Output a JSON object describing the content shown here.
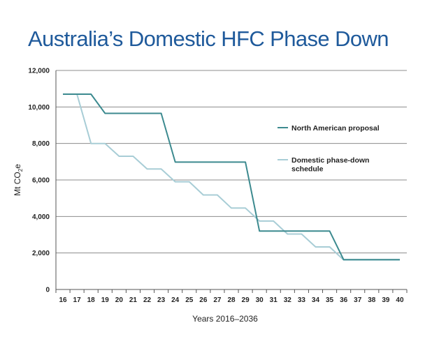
{
  "chart_data": {
    "type": "line",
    "title": "Australia’s Domestic HFC Phase Down",
    "xlabel": "Years 2016–2036",
    "ylabel_main": "Mt CO",
    "ylabel_sub": "2",
    "ylabel_suffix": "e",
    "ylim": [
      0,
      12000
    ],
    "y_ticks": [
      "0",
      "2,000",
      "4,000",
      "6,000",
      "8,000",
      "10,000",
      "12,000"
    ],
    "y_tick_values": [
      0,
      2000,
      4000,
      6000,
      8000,
      10000,
      12000
    ],
    "x": [
      "16",
      "17",
      "18",
      "19",
      "20",
      "21",
      "22",
      "23",
      "24",
      "25",
      "26",
      "27",
      "28",
      "29",
      "30",
      "31",
      "32",
      "33",
      "34",
      "35",
      "36",
      "37",
      "38",
      "39",
      "40"
    ],
    "grid": true,
    "legend_placement": "right",
    "series": [
      {
        "name": "North American proposal",
        "color": "#3c8a8f",
        "values": [
          10700,
          10700,
          10700,
          9650,
          9650,
          9650,
          9650,
          9650,
          6980,
          6980,
          6980,
          6980,
          6980,
          6980,
          3200,
          3200,
          3200,
          3200,
          3200,
          3200,
          1630,
          1630,
          1630,
          1630,
          1630
        ]
      },
      {
        "name": "Domestic phase-down schedule",
        "name_lines": [
          "Domestic phase-down",
          "schedule"
        ],
        "color": "#a8cdd6",
        "values": [
          10700,
          10700,
          8000,
          8000,
          7300,
          7300,
          6600,
          6600,
          5900,
          5900,
          5180,
          5180,
          4460,
          4460,
          3750,
          3750,
          3040,
          3040,
          2330,
          2330,
          1620,
          1620,
          1620,
          1620,
          1620
        ]
      }
    ]
  }
}
